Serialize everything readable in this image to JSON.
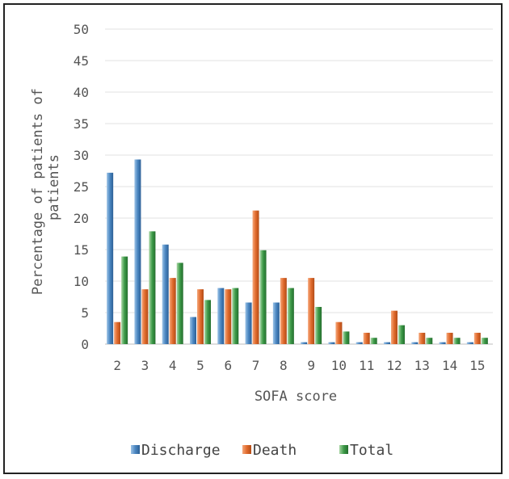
{
  "chart_data": {
    "type": "bar",
    "title": "",
    "xlabel": "SOFA score",
    "ylabel": "Percentage of patients of patients",
    "ylim": [
      0,
      50
    ],
    "yticks": [
      0,
      5,
      10,
      15,
      20,
      25,
      30,
      35,
      40,
      45,
      50
    ],
    "grid": true,
    "legend_position": "bottom",
    "categories": [
      "2",
      "3",
      "4",
      "5",
      "6",
      "7",
      "8",
      "9",
      "10",
      "11",
      "12",
      "13",
      "14",
      "15"
    ],
    "series": [
      {
        "name": "Discharge",
        "color": "#4a86c1",
        "values": [
          27.2,
          29.3,
          15.8,
          4.3,
          8.9,
          6.6,
          6.6,
          0.3,
          0.3,
          0.3,
          0.3,
          0.3,
          0.3,
          0.3
        ]
      },
      {
        "name": "Death",
        "color": "#e06a2c",
        "values": [
          3.5,
          8.7,
          10.5,
          8.7,
          8.7,
          21.2,
          10.5,
          10.5,
          3.5,
          1.8,
          5.3,
          1.8,
          1.8,
          1.8
        ]
      },
      {
        "name": "Total",
        "color": "#3d9a48",
        "values": [
          13.9,
          17.9,
          12.9,
          7.0,
          8.9,
          14.9,
          8.9,
          5.9,
          2.0,
          1.0,
          3.0,
          1.0,
          1.0,
          1.0
        ]
      }
    ]
  }
}
